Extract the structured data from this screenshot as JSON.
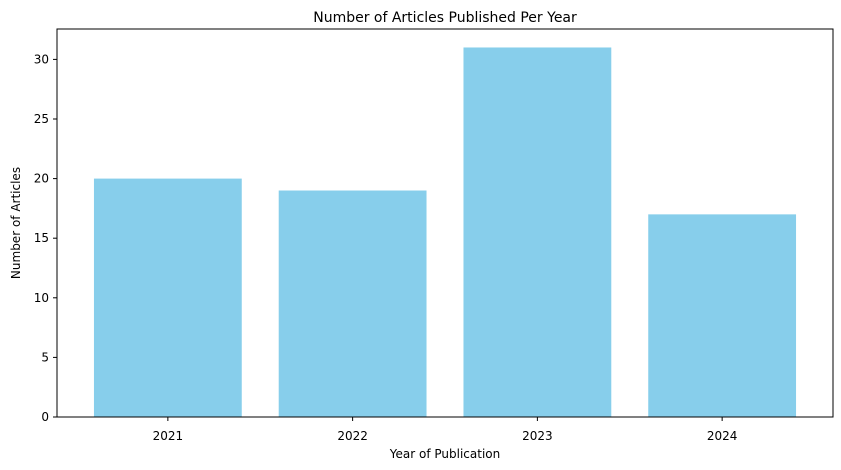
{
  "chart_data": {
    "type": "bar",
    "title": "Number of Articles Published Per Year",
    "xlabel": "Year of Publication",
    "ylabel": "Number of Articles",
    "categories": [
      "2021",
      "2022",
      "2023",
      "2024"
    ],
    "values": [
      20,
      19,
      31,
      17
    ],
    "ylim": [
      0,
      32.55
    ],
    "yticks": [
      0,
      5,
      10,
      15,
      20,
      25,
      30
    ],
    "bar_color": "#87CEEB",
    "grid": false,
    "legend": "none"
  }
}
